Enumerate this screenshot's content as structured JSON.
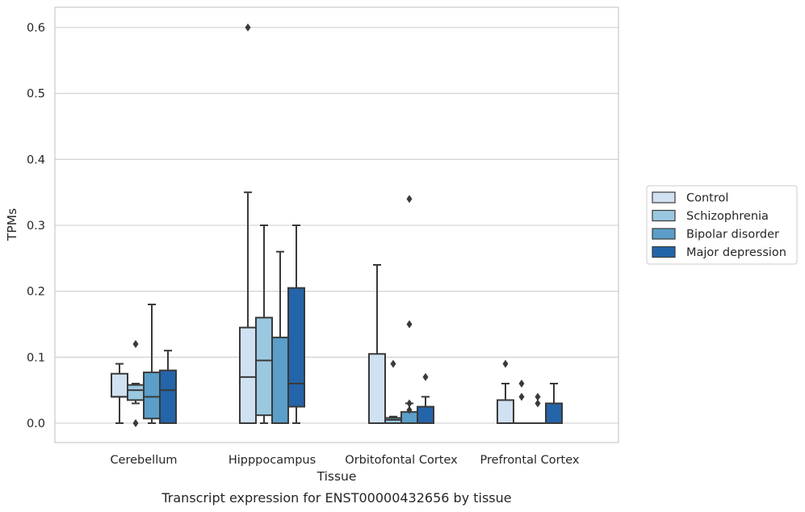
{
  "caption": "Transcript expression for ENST00000432656 by tissue",
  "chart_data": {
    "type": "box",
    "xlabel": "Tissue",
    "ylabel": "TPMs",
    "ylim": [
      -0.03,
      0.63
    ],
    "yticks": [
      0.0,
      0.1,
      0.2,
      0.3,
      0.4,
      0.5,
      0.6
    ],
    "ytick_labels": [
      "0.0",
      "0.1",
      "0.2",
      "0.3",
      "0.4",
      "0.5",
      "0.6"
    ],
    "grid": "horizontal",
    "legend_position": "right",
    "categories": [
      "Cerebellum",
      "Hipppocampus",
      "Orbitofontal Cortex",
      "Prefrontal Cortex"
    ],
    "series": [
      {
        "name": "Control",
        "color": "#d0e1f2",
        "boxes": [
          {
            "whislo": 0.0,
            "q1": 0.04,
            "med": 0.04,
            "q3": 0.075,
            "whishi": 0.09,
            "fliers": []
          },
          {
            "whislo": 0.0,
            "q1": 0.0,
            "med": 0.07,
            "q3": 0.145,
            "whishi": 0.35,
            "fliers": [
              0.6
            ]
          },
          {
            "whislo": 0.0,
            "q1": 0.0,
            "med": 0.0,
            "q3": 0.105,
            "whishi": 0.24,
            "fliers": []
          },
          {
            "whislo": 0.0,
            "q1": 0.0,
            "med": 0.0,
            "q3": 0.035,
            "whishi": 0.06,
            "fliers": [
              0.09
            ]
          }
        ]
      },
      {
        "name": "Schizophrenia",
        "color": "#9ac8e0",
        "boxes": [
          {
            "whislo": 0.03,
            "q1": 0.035,
            "med": 0.05,
            "q3": 0.058,
            "whishi": 0.06,
            "fliers": [
              0.12,
              0.0
            ]
          },
          {
            "whislo": 0.0,
            "q1": 0.012,
            "med": 0.095,
            "q3": 0.16,
            "whishi": 0.3,
            "fliers": []
          },
          {
            "whislo": 0.0,
            "q1": 0.0,
            "med": 0.005,
            "q3": 0.008,
            "whishi": 0.01,
            "fliers": [
              0.09
            ]
          },
          {
            "whislo": 0.0,
            "q1": 0.0,
            "med": 0.0,
            "q3": 0.0,
            "whishi": 0.0,
            "fliers": [
              0.06,
              0.04
            ]
          }
        ]
      },
      {
        "name": "Bipolar disorder",
        "color": "#5a9ec9",
        "boxes": [
          {
            "whislo": 0.0,
            "q1": 0.007,
            "med": 0.04,
            "q3": 0.077,
            "whishi": 0.18,
            "fliers": []
          },
          {
            "whislo": 0.0,
            "q1": 0.0,
            "med": 0.0,
            "q3": 0.13,
            "whishi": 0.26,
            "fliers": []
          },
          {
            "whislo": 0.0,
            "q1": 0.0,
            "med": 0.0,
            "q3": 0.017,
            "whishi": 0.03,
            "fliers": [
              0.34,
              0.15,
              0.03,
              0.02
            ]
          },
          {
            "whislo": 0.0,
            "q1": 0.0,
            "med": 0.0,
            "q3": 0.0,
            "whishi": 0.0,
            "fliers": [
              0.04,
              0.03
            ]
          }
        ]
      },
      {
        "name": "Major depression",
        "color": "#2464a9",
        "boxes": [
          {
            "whislo": 0.0,
            "q1": 0.0,
            "med": 0.05,
            "q3": 0.08,
            "whishi": 0.11,
            "fliers": []
          },
          {
            "whislo": 0.0,
            "q1": 0.025,
            "med": 0.06,
            "q3": 0.205,
            "whishi": 0.3,
            "fliers": []
          },
          {
            "whislo": 0.0,
            "q1": 0.0,
            "med": 0.0,
            "q3": 0.025,
            "whishi": 0.04,
            "fliers": [
              0.07
            ]
          },
          {
            "whislo": 0.0,
            "q1": 0.0,
            "med": 0.0,
            "q3": 0.03,
            "whishi": 0.06,
            "fliers": []
          }
        ]
      }
    ]
  }
}
